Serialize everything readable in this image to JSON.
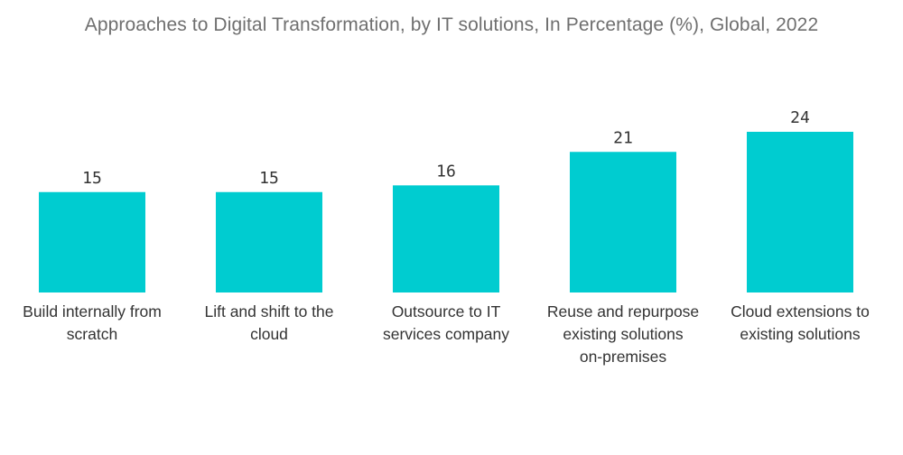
{
  "chart_data": {
    "type": "bar",
    "title": "Approaches to Digital Transformation, by IT solutions, In Percentage (%), Global,  2022",
    "xlabel": "",
    "ylabel": "",
    "ylim": [
      0,
      24
    ],
    "grid": false,
    "legend": "none",
    "bar_color": "#00ccd0",
    "categories": [
      [
        "Build internally from",
        "scratch"
      ],
      [
        "Lift and shift to the",
        "cloud"
      ],
      [
        "Outsource to IT",
        "services company"
      ],
      [
        "Reuse and repurpose",
        "existing solutions",
        "on-premises"
      ],
      [
        "Cloud extensions to",
        "existing solutions"
      ]
    ],
    "values": [
      15,
      15,
      16,
      21,
      24
    ]
  }
}
